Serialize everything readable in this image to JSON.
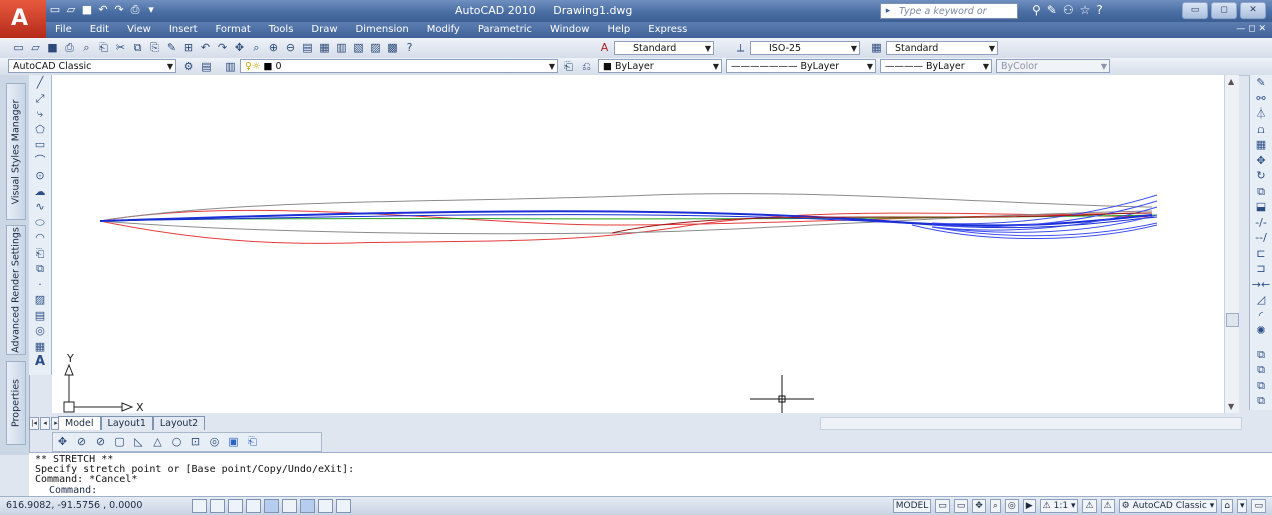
{
  "window": {
    "app_name": "AutoCAD 2010",
    "file_name": "Drawing1.dwg",
    "search_placeholder": "Type a keyword or phrase"
  },
  "menu": {
    "items": [
      "File",
      "Edit",
      "View",
      "Insert",
      "Format",
      "Tools",
      "Draw",
      "Dimension",
      "Modify",
      "Parametric",
      "Window",
      "Help",
      "Express"
    ]
  },
  "toolbar_styles": {
    "text_style": "Standard",
    "dim_style": "ISO-25",
    "table_style": "Standard"
  },
  "toolbar_layers": {
    "workspace": "AutoCAD Classic",
    "layer": "0",
    "color": "ByLayer",
    "linetype": "ByLayer",
    "lineweight": "ByLayer",
    "plotstyle": "ByColor"
  },
  "palettes": {
    "visual_styles": "Visual Styles Manager",
    "render_settings": "Advanced Render Settings",
    "properties": "Properties"
  },
  "layout_tabs": [
    "Model",
    "Layout1",
    "Layout2"
  ],
  "ucs": {
    "x_label": "X",
    "y_label": "Y"
  },
  "command_line": {
    "history": [
      "** STRETCH **",
      "Specify stretch point or [Base point/Copy/Undo/eXit]:",
      "Command: *Cancel*"
    ],
    "prompt": "Command:"
  },
  "status": {
    "coordinates": "616.9082, -91.5756 , 0.0000",
    "space": "MODEL",
    "annotation_scale": "1:1",
    "workspace": "AutoCAD Classic"
  },
  "colors": {
    "accent": "#3f6298",
    "curve_red": "#e53b3b",
    "curve_gray": "#8a8a8a",
    "curve_blue": "#1b2fd6",
    "curve_green": "#1ea01e"
  }
}
